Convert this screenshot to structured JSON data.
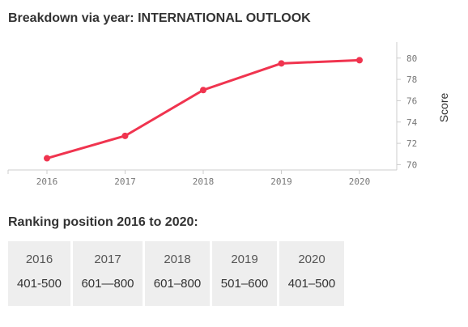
{
  "title": "Breakdown via year: INTERNATIONAL OUTLOOK",
  "chart_data": {
    "type": "line",
    "x": [
      "2016",
      "2017",
      "2018",
      "2019",
      "2020"
    ],
    "series": [
      {
        "values": [
          70.6,
          72.7,
          77.0,
          79.5,
          79.8
        ]
      }
    ],
    "yticks": [
      70,
      72,
      74,
      76,
      78,
      80
    ],
    "ylim": [
      69.5,
      81.5
    ],
    "ylabel": "Score",
    "xlabel": "",
    "grid": false,
    "colors": {
      "line": "#f0344f",
      "axis": "#cccccc"
    }
  },
  "ranking": {
    "title": "Ranking position 2016 to 2020:",
    "items": [
      {
        "year": "2016",
        "value": "401-500"
      },
      {
        "year": "2017",
        "value": "601—800"
      },
      {
        "year": "2018",
        "value": "601–800"
      },
      {
        "year": "2019",
        "value": "501–600"
      },
      {
        "year": "2020",
        "value": "401–500"
      }
    ]
  }
}
